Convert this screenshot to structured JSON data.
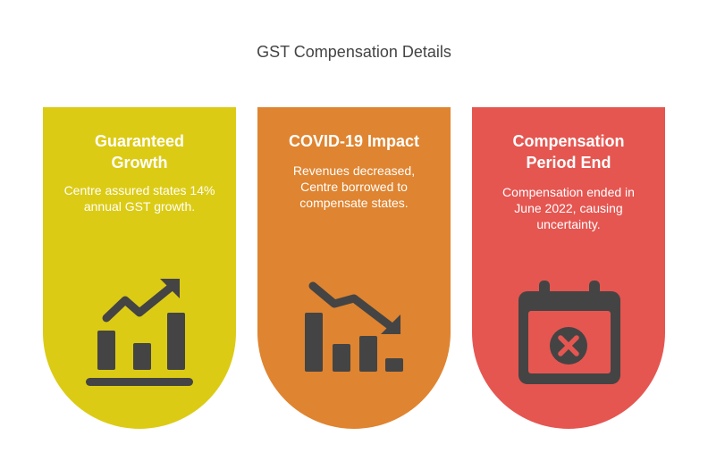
{
  "title": "GST Compensation Details",
  "cards": [
    {
      "heading": "Guaranteed Growth",
      "text": "Centre assured states 14% annual GST growth.",
      "icon": "chart-trending-up-icon",
      "color": "#dccb14"
    },
    {
      "heading": "COVID-19 Impact",
      "text": "Revenues decreased, Centre borrowed to compensate states.",
      "icon": "chart-trending-down-icon",
      "color": "#df8430"
    },
    {
      "heading": "Compensation Period End",
      "text": "Compensation ended in June 2022, causing uncertainty.",
      "icon": "calendar-cancel-icon",
      "color": "#e55651"
    }
  ]
}
